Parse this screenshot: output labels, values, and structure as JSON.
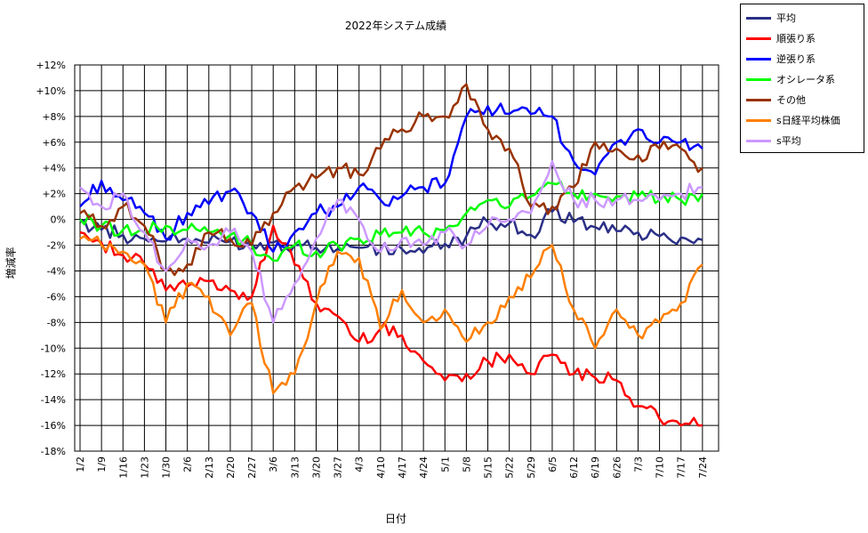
{
  "chart_data": {
    "type": "line",
    "title": "2022年システム成績",
    "xlabel": "日付",
    "ylabel": "増減率",
    "y_ticks": [
      "-18%",
      "-16%",
      "-14%",
      "-12%",
      "-10%",
      "-8%",
      "-6%",
      "-4%",
      "-2%",
      "0%",
      "+2%",
      "+4%",
      "+6%",
      "+8%",
      "+10%",
      "+12%"
    ],
    "ylim": [
      -18,
      12
    ],
    "x_tick_labels": [
      "1/2",
      "1/9",
      "1/16",
      "1/23",
      "1/30",
      "2/6",
      "2/13",
      "2/20",
      "2/27",
      "3/6",
      "3/13",
      "3/20",
      "3/27",
      "4/3",
      "4/10",
      "4/17",
      "4/24",
      "5/1",
      "5/8",
      "5/15",
      "5/22",
      "5/29",
      "6/5",
      "6/12",
      "6/19",
      "6/26",
      "7/3",
      "7/10",
      "7/17",
      "7/24"
    ],
    "grid": true,
    "legend_position": "top-right",
    "series": [
      {
        "name": "平均",
        "color": "#2b2f86",
        "values": [
          -0.2,
          -0.8,
          -1.2,
          -1.5,
          -1.7,
          -1.5,
          -1.8,
          -1.7,
          -1.9,
          -1.8,
          -2.0,
          -2.2,
          -2.3,
          -2.2,
          -2.4,
          -2.3,
          -2.6,
          -1.9,
          -1.3,
          -0.2,
          -0.3,
          -1.2,
          0.6,
          -0.2,
          -0.6,
          -0.9,
          -1.0,
          -1.3,
          -1.4,
          -1.6
        ]
      },
      {
        "name": "順張り系",
        "color": "#ff0000",
        "values": [
          -1.0,
          -1.8,
          -2.8,
          -3.5,
          -5.5,
          -5.2,
          -4.8,
          -5.5,
          -6.0,
          -0.5,
          -3.5,
          -6.5,
          -7.5,
          -9.5,
          -8.5,
          -9.0,
          -11.0,
          -12.5,
          -12.0,
          -11.0,
          -10.5,
          -12.0,
          -10.5,
          -12.0,
          -12.3,
          -12.5,
          -14.5,
          -15.5,
          -16.0,
          -16.0
        ]
      },
      {
        "name": "逆張り系",
        "color": "#0000ff",
        "values": [
          1.0,
          3.0,
          1.5,
          0.5,
          -1.5,
          0.5,
          1.2,
          2.2,
          0.5,
          -2.5,
          -1.0,
          0.5,
          1.0,
          2.5,
          1.5,
          1.8,
          2.5,
          2.8,
          8.0,
          8.8,
          8.2,
          8.2,
          8.0,
          4.5,
          3.5,
          6.0,
          7.0,
          6.0,
          6.0,
          5.5
        ]
      },
      {
        "name": "オシレータ系",
        "color": "#00ff00",
        "values": [
          0.0,
          -0.5,
          -0.8,
          -1.0,
          -0.5,
          -0.8,
          -1.0,
          -1.2,
          -2.0,
          -3.2,
          -2.0,
          -2.5,
          -2.0,
          -1.5,
          -1.2,
          -1.0,
          -1.0,
          -0.8,
          0.5,
          1.5,
          1.0,
          1.8,
          2.8,
          2.0,
          2.0,
          1.8,
          1.8,
          1.5,
          1.5,
          2.0
        ]
      },
      {
        "name": "その他",
        "color": "#993300",
        "values": [
          0.5,
          -0.5,
          1.0,
          -0.5,
          -4.0,
          -3.5,
          -1.0,
          -1.5,
          -2.0,
          0.5,
          2.5,
          3.2,
          4.0,
          3.5,
          5.5,
          7.0,
          8.0,
          8.0,
          10.5,
          7.0,
          5.5,
          1.0,
          1.0,
          2.5,
          6.0,
          5.5,
          5.0,
          5.5,
          5.5,
          4.0
        ]
      },
      {
        "name": "s日経平均株価",
        "color": "#ff7f00",
        "values": [
          -1.5,
          -2.0,
          -2.5,
          -3.5,
          -8.0,
          -5.0,
          -6.0,
          -9.0,
          -6.5,
          -13.5,
          -12.0,
          -6.5,
          -2.5,
          -3.0,
          -8.5,
          -5.5,
          -8.0,
          -7.0,
          -9.5,
          -8.0,
          -6.0,
          -4.5,
          -2.0,
          -7.0,
          -10.0,
          -7.0,
          -9.0,
          -8.0,
          -6.5,
          -3.5
        ]
      },
      {
        "name": "s平均",
        "color": "#cc99ff",
        "values": [
          2.5,
          1.0,
          2.0,
          -1.0,
          -4.0,
          -1.5,
          -2.0,
          -1.0,
          -2.5,
          -8.0,
          -5.0,
          -1.5,
          1.5,
          0.0,
          -2.5,
          -1.5,
          -2.0,
          -1.0,
          -2.0,
          -0.5,
          0.0,
          0.5,
          4.5,
          1.5,
          1.5,
          1.5,
          1.5,
          1.5,
          2.0,
          2.5
        ]
      }
    ]
  }
}
